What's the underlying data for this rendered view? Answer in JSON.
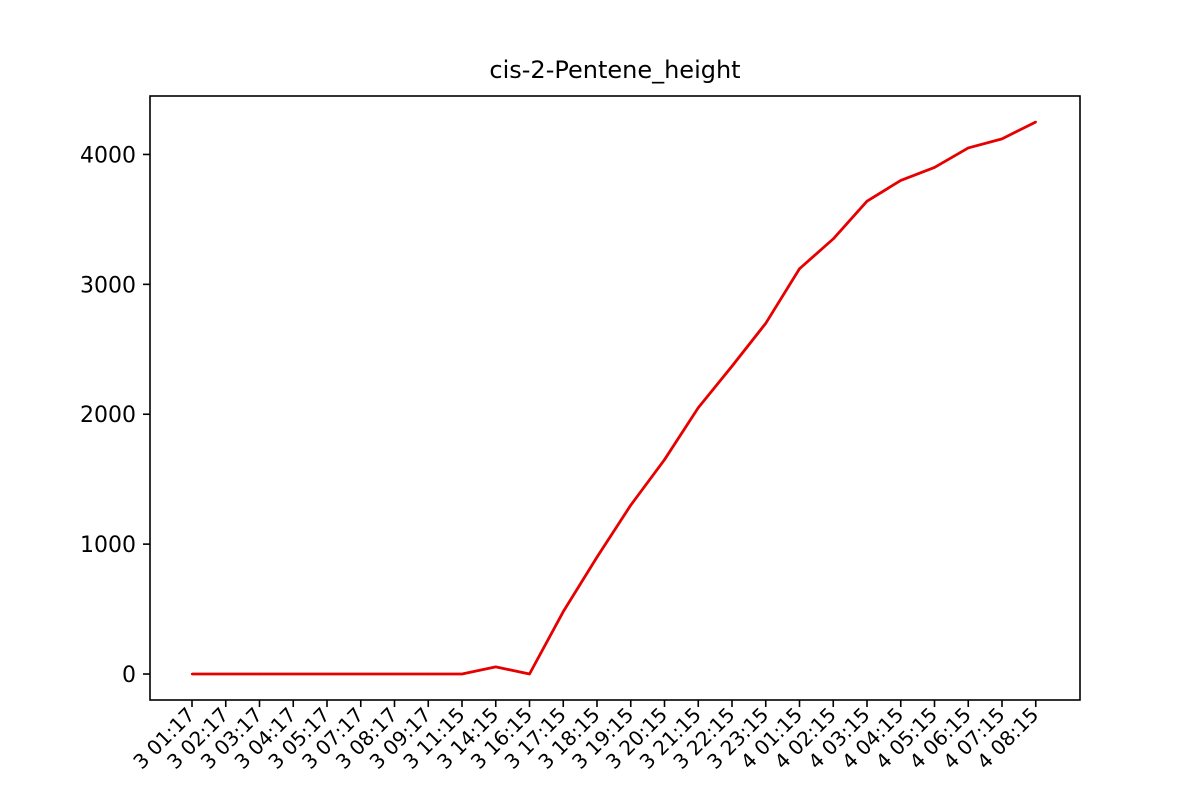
{
  "chart_data": {
    "type": "line",
    "title": "cis-2-Pentene_height",
    "xlabel": "",
    "ylabel": "",
    "x": [
      "2023-01-03 01:17",
      "2023-01-03 02:17",
      "2023-01-03 03:17",
      "2023-01-03 04:17",
      "2023-01-03 05:17",
      "2023-01-03 07:17",
      "2023-01-03 08:17",
      "2023-01-03 09:17",
      "2023-01-03 11:15",
      "2023-01-03 14:15",
      "2023-01-03 16:15",
      "2023-01-03 17:15",
      "2023-01-03 18:15",
      "2023-01-03 19:15",
      "2023-01-03 20:15",
      "2023-01-03 21:15",
      "2023-01-03 22:15",
      "2023-01-03 23:15",
      "2023-01-04 01:15",
      "2023-01-04 02:15",
      "2023-01-04 03:15",
      "2023-01-04 04:15",
      "2023-01-04 05:15",
      "2023-01-04 06:15",
      "2023-01-04 07:15",
      "2023-01-04 08:15"
    ],
    "tick_labels": [
      "3 01:17",
      "3 02:17",
      "3 03:17",
      "3 04:17",
      "3 05:17",
      "3 07:17",
      "3 08:17",
      "3 09:17",
      "3 11:15",
      "3 14:15",
      "3 16:15",
      "3 17:15",
      "3 18:15",
      "3 19:15",
      "3 20:15",
      "3 21:15",
      "3 22:15",
      "3 23:15",
      "4 01:15",
      "4 02:15",
      "4 03:15",
      "4 04:15",
      "4 05:15",
      "4 06:15",
      "4 07:15",
      "4 08:15"
    ],
    "series": [
      {
        "values": [
          0,
          0,
          0,
          0,
          0,
          0,
          0,
          0,
          0,
          55,
          0,
          480,
          900,
          1300,
          1650,
          2050,
          2370,
          2700,
          3120,
          3350,
          3640,
          3800,
          3900,
          4050,
          4120,
          4250
        ],
        "color": "#e60000"
      }
    ],
    "ylim": [
      -200,
      4450
    ],
    "yticks": [
      0,
      1000,
      2000,
      3000,
      4000
    ],
    "grid": false,
    "legend": "none"
  }
}
